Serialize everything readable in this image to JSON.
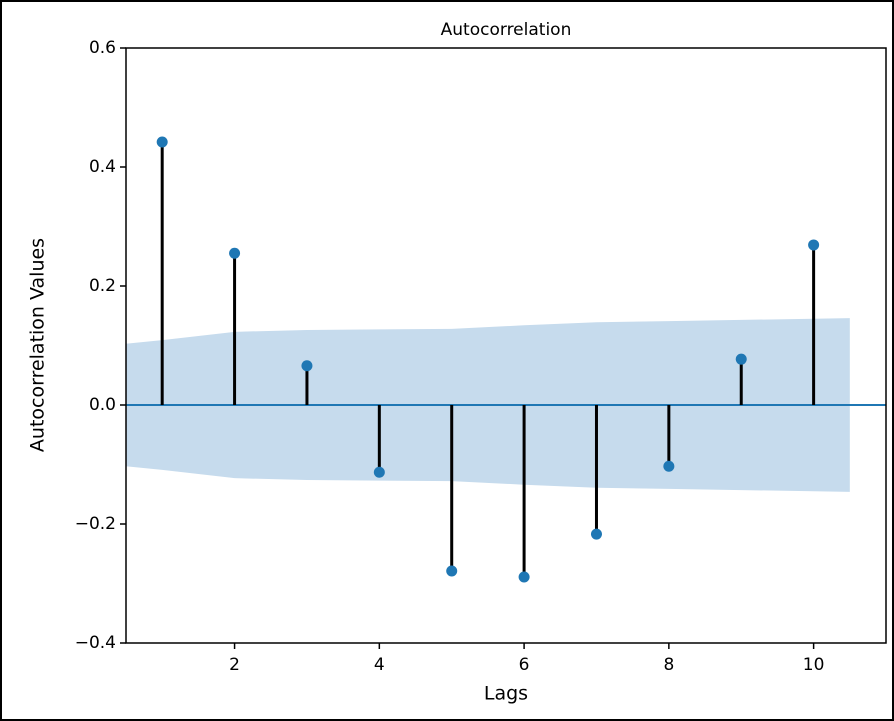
{
  "chart_data": {
    "type": "stem",
    "title": "Autocorrelation",
    "xlabel": "Lags",
    "ylabel": "Autocorrelation Values",
    "x": [
      1,
      2,
      3,
      4,
      5,
      6,
      7,
      8,
      9,
      10
    ],
    "values": [
      0.442,
      0.255,
      0.066,
      -0.113,
      -0.279,
      -0.289,
      -0.217,
      -0.103,
      0.077,
      0.269
    ],
    "color": "#1f77b4",
    "stem_color": "#000000",
    "confidence_band": {
      "color": "#c6dbed",
      "x": [
        0.5,
        1,
        2,
        3,
        4,
        5,
        6,
        7,
        8,
        9,
        10,
        10.5
      ],
      "upper": [
        0.103,
        0.109,
        0.123,
        0.126,
        0.127,
        0.128,
        0.134,
        0.139,
        0.141,
        0.143,
        0.145,
        0.146
      ],
      "lower": [
        -0.103,
        -0.109,
        -0.123,
        -0.126,
        -0.127,
        -0.128,
        -0.134,
        -0.139,
        -0.141,
        -0.143,
        -0.145,
        -0.146
      ]
    },
    "xlim": [
      0.5,
      11
    ],
    "ylim": [
      -0.4,
      0.6
    ],
    "xticks": [
      2,
      4,
      6,
      8,
      10
    ],
    "yticks": [
      {
        "value": -0.4,
        "label": "−0.4"
      },
      {
        "value": -0.2,
        "label": "−0.2"
      },
      {
        "value": 0,
        "label": "0.0"
      },
      0.2,
      0.4,
      0.6
    ]
  }
}
